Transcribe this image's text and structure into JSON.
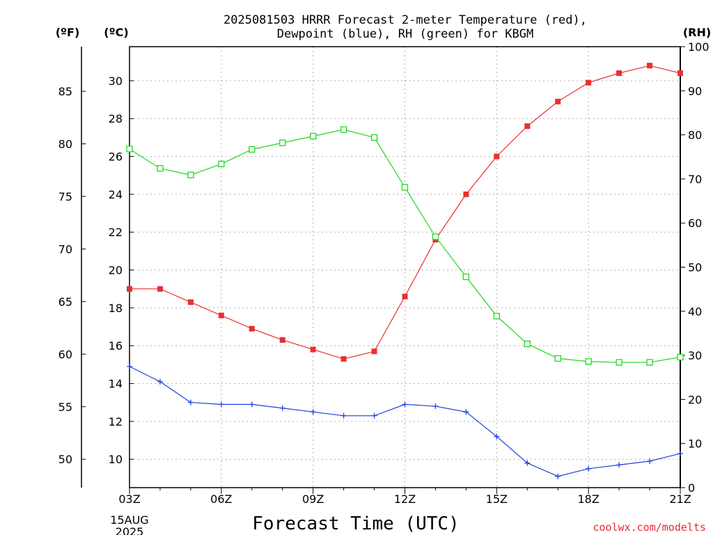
{
  "chart_data": {
    "type": "line",
    "title_line1": "2025081503 HRRR Forecast 2-meter Temperature (red),",
    "title_line2": "Dewpoint (blue), RH (green) for KBGM",
    "unit_f": "(ºF)",
    "unit_c": "(ºC)",
    "unit_rh": "(RH)",
    "xlabel": "Forecast Time (UTC)",
    "date_line1": "15AUG",
    "date_line2": "2025",
    "credit": "coolwx.com/modelts",
    "x_tick_labels": [
      "03Z",
      "06Z",
      "09Z",
      "12Z",
      "15Z",
      "18Z",
      "21Z"
    ],
    "x_tick_hours": [
      3,
      6,
      9,
      12,
      15,
      18,
      21
    ],
    "x_range": [
      3,
      21
    ],
    "ylim_c": [
      8.5,
      31.8
    ],
    "ylim_rh": [
      0,
      100
    ],
    "c_ticks": [
      10,
      12,
      14,
      16,
      18,
      20,
      22,
      24,
      26,
      28,
      30
    ],
    "f_ticks": [
      50,
      55,
      60,
      65,
      70,
      75,
      80,
      85
    ],
    "rh_ticks": [
      0,
      10,
      20,
      30,
      40,
      50,
      60,
      70,
      80,
      90,
      100
    ],
    "hours": [
      3,
      4,
      5,
      6,
      7,
      8,
      9,
      10,
      11,
      12,
      13,
      14,
      15,
      16,
      17,
      18,
      19,
      20,
      21
    ],
    "series": [
      {
        "name": "Temperature",
        "color": "#e83030",
        "marker": "filled-square",
        "values": [
          19.0,
          19.0,
          18.3,
          17.6,
          16.9,
          16.3,
          15.8,
          15.3,
          15.7,
          18.6,
          21.6,
          24.0,
          26.0,
          27.6,
          28.9,
          29.9,
          30.4,
          30.8,
          30.4
        ]
      },
      {
        "name": "Dewpoint",
        "color": "#2040e0",
        "marker": "plus",
        "values": [
          14.9,
          14.1,
          13.0,
          12.9,
          12.9,
          12.7,
          12.5,
          12.3,
          12.3,
          12.9,
          12.8,
          12.5,
          11.2,
          9.8,
          9.1,
          9.5,
          9.7,
          9.9,
          10.3
        ]
      },
      {
        "name": "RH",
        "color": "#20d820",
        "marker": "open-square",
        "values": [
          76.8,
          72.4,
          70.9,
          73.4,
          76.7,
          78.2,
          79.7,
          81.2,
          79.4,
          68.1,
          56.9,
          47.8,
          38.9,
          32.6,
          29.3,
          28.6,
          28.4,
          28.4,
          29.6
        ]
      }
    ]
  }
}
